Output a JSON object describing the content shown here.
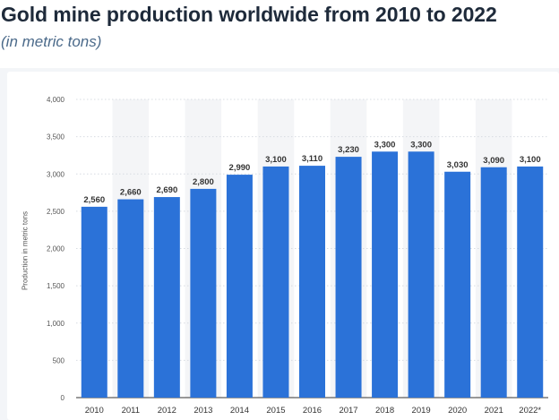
{
  "chart_data": {
    "type": "bar",
    "title": "Gold mine production worldwide from 2010 to 2022",
    "subtitle": "(in metric tons)",
    "xlabel": "",
    "ylabel": "Production in metric tons",
    "categories": [
      "2010",
      "2011",
      "2012",
      "2013",
      "2014",
      "2015",
      "2016",
      "2017",
      "2018",
      "2019",
      "2020",
      "2021",
      "2022*"
    ],
    "values": [
      2560,
      2660,
      2690,
      2800,
      2990,
      3100,
      3110,
      3230,
      3300,
      3300,
      3030,
      3090,
      3100
    ],
    "value_labels": [
      "2,560",
      "2,660",
      "2,690",
      "2,800",
      "2,990",
      "3,100",
      "3,110",
      "3,230",
      "3,300",
      "3,300",
      "3,030",
      "3,090",
      "3,100"
    ],
    "ylim": [
      0,
      4000
    ],
    "yticks": [
      0,
      500,
      1000,
      1500,
      2000,
      2500,
      3000,
      3500,
      4000
    ],
    "ytick_labels": [
      "0",
      "500",
      "1,000",
      "1,500",
      "2,000",
      "2,500",
      "3,000",
      "3,500",
      "4,000"
    ],
    "grid": true,
    "legend": "none",
    "colors": {
      "bar": "#2b72d8",
      "alt_band": "#f4f5f7",
      "grid": "#d7dce2"
    }
  }
}
